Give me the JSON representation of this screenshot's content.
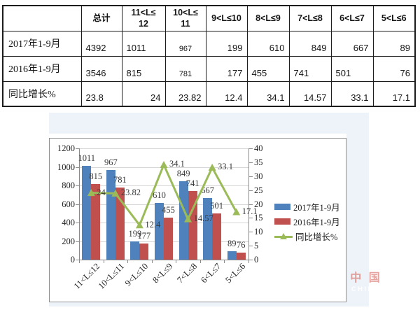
{
  "table": {
    "header": [
      "",
      "总计",
      "11<L≤\n12",
      "10<L≤\n11",
      "9<L≤10",
      "8<L≤9",
      "7<L≤8",
      "6<L≤7",
      "5<L≤6"
    ],
    "rows": [
      {
        "label": "2017年1-9月",
        "cells": [
          "4392",
          "1011",
          "967",
          "199",
          "610",
          "849",
          "667",
          "89"
        ],
        "fmt": [
          "l",
          "l",
          "c-sm",
          "r",
          "r",
          "r",
          "r",
          "r"
        ]
      },
      {
        "label": "2016年1-9月",
        "cells": [
          "3546",
          "815",
          "781",
          "177",
          "455",
          "741",
          "501",
          "76"
        ],
        "fmt": [
          "l",
          "l",
          "c-sm",
          "r",
          "l",
          "l",
          "l",
          "r"
        ]
      },
      {
        "label": "同比增长%",
        "cells": [
          "23.8",
          "24",
          "23.82",
          "12.4",
          "34.1",
          "14.57",
          "33.1",
          "17.1"
        ],
        "fmt": [
          "l",
          "r",
          "r",
          "r",
          "r",
          "r",
          "r",
          "r"
        ]
      }
    ]
  },
  "chart_data": {
    "type": "bar",
    "subtype": "grouped-bars-with-line",
    "categories": [
      "11<L≤12",
      "10<L≤11",
      "9<L≤10",
      "8<L≤9",
      "7<L≤8",
      "6<L≤7",
      "5<L≤6"
    ],
    "series": [
      {
        "name": "2017年1-9月",
        "type": "bar",
        "axis": "left",
        "color": "#4f81bd",
        "values": [
          1011,
          967,
          199,
          610,
          849,
          667,
          89
        ]
      },
      {
        "name": "2016年1-9月",
        "type": "bar",
        "axis": "left",
        "color": "#c0504d",
        "values": [
          815,
          781,
          177,
          455,
          741,
          501,
          76
        ]
      },
      {
        "name": "同比增长%",
        "type": "line",
        "axis": "right",
        "color": "#9bbb59",
        "marker": "triangle",
        "values": [
          24,
          23.82,
          12.4,
          34.1,
          14.57,
          33.1,
          17.1
        ]
      }
    ],
    "left_axis": {
      "min": 0,
      "max": 1200,
      "step": 200,
      "ticks": [
        "0",
        "200",
        "400",
        "600",
        "800",
        "1000",
        "1200"
      ]
    },
    "right_axis": {
      "min": 0,
      "max": 40,
      "step": 5,
      "ticks": [
        "0",
        "5",
        "10",
        "15",
        "20",
        "25",
        "30",
        "35",
        "40"
      ]
    },
    "grid": true,
    "data_labels": true,
    "legend_position": "right",
    "title": ""
  },
  "colors": {
    "bar_2017": "#4f81bd",
    "bar_2016": "#c0504d",
    "line_growth": "#9bbb59",
    "panel_background": "#eef2f9",
    "gridline": "#d6d6d6",
    "axis": "#8a8a8a",
    "table_border": "#1c1c1c"
  },
  "watermark": {
    "line1": "中 国",
    "line2": "CHINA"
  }
}
